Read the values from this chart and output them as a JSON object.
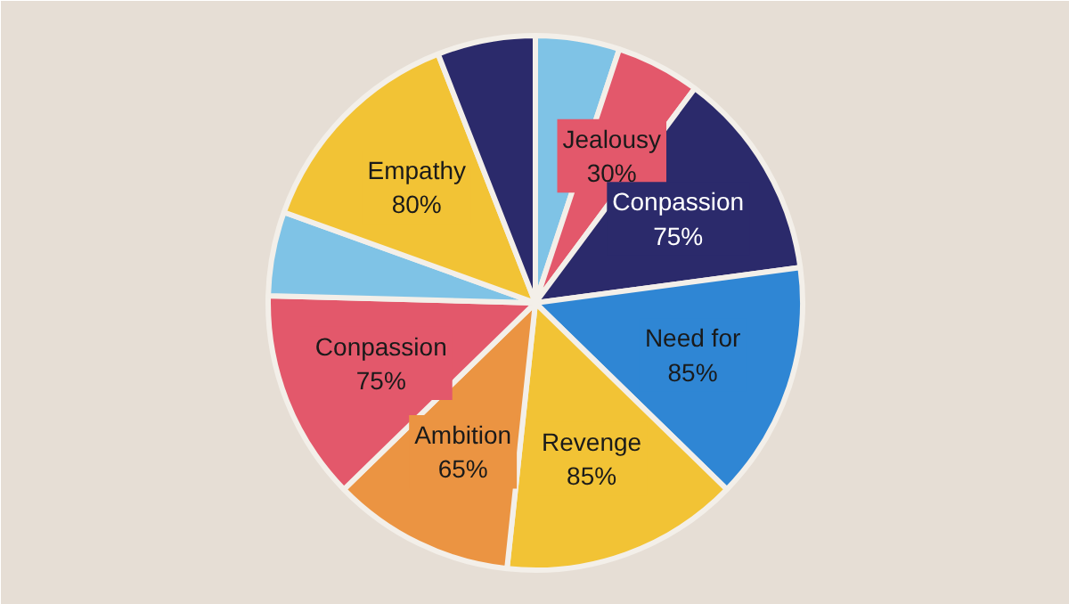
{
  "chart_data": {
    "type": "pie",
    "categories": [
      null,
      "Jealousy",
      "Conpassion",
      "Need for",
      "Revenge",
      "Ambition",
      "Conpassion",
      null,
      "Empathy",
      null
    ],
    "values": [
      30,
      30,
      75,
      85,
      85,
      65,
      75,
      30,
      80,
      35
    ],
    "value_labels": [
      null,
      "30%",
      "75%",
      "85%",
      "85%",
      "65%",
      "75%",
      null,
      "80%",
      null
    ],
    "colors": [
      "#7fc3e6",
      "#e3586b",
      "#2b2a6b",
      "#2f86d4",
      "#f2c335",
      "#eb9442",
      "#e3586b",
      "#7fc3e6",
      "#f2c335",
      "#2b2a6b"
    ]
  }
}
